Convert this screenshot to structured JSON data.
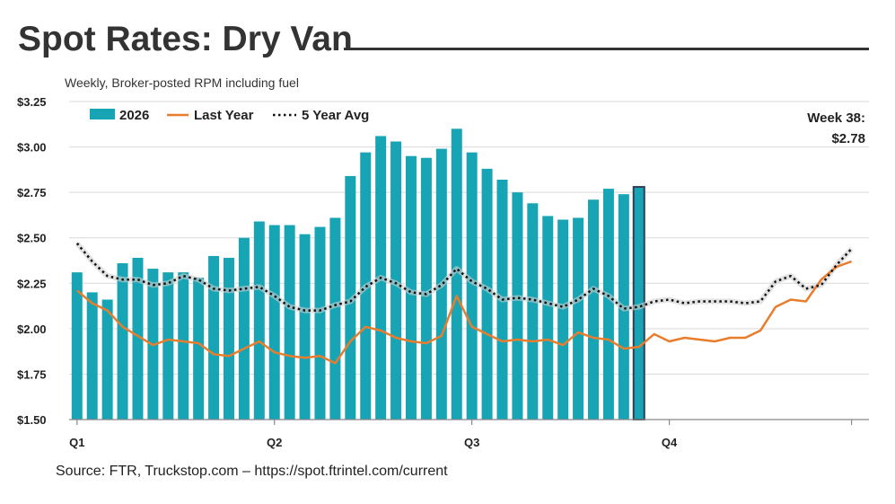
{
  "title": "Spot Rates: Dry Van",
  "source": "Source: FTR, Truckstop.com – https://spot.ftrintel.com/current",
  "chart_data": {
    "type": "bar",
    "subtitle": "Weekly, Broker-posted RPM including fuel",
    "ylim": [
      1.5,
      3.25
    ],
    "y_ticks": [
      {
        "value": 1.5,
        "label": "$1.50"
      },
      {
        "value": 1.75,
        "label": "$1.75"
      },
      {
        "value": 2.0,
        "label": "$2.00"
      },
      {
        "value": 2.25,
        "label": "$2.25"
      },
      {
        "value": 2.5,
        "label": "$2.50"
      },
      {
        "value": 2.75,
        "label": "$2.75"
      },
      {
        "value": 3.0,
        "label": "$3.00"
      },
      {
        "value": 3.25,
        "label": "$3.25"
      }
    ],
    "grid": true,
    "x_range": [
      1,
      52
    ],
    "quarters": [
      {
        "label": "Q1",
        "week": 1
      },
      {
        "label": "Q2",
        "week": 14
      },
      {
        "label": "Q3",
        "week": 27
      },
      {
        "label": "Q4",
        "week": 40
      }
    ],
    "legend_position": "top-left",
    "callout": {
      "line1": "Week 38:",
      "line2": "$2.78",
      "week": 38,
      "value": 2.78
    },
    "colors": {
      "bars": "#17A5B5",
      "last_year": "#E87D2E",
      "avg": "#111111",
      "highlight_border": "#2E3E55"
    },
    "series": [
      {
        "name": "2026",
        "kind": "bar",
        "x": [
          1,
          2,
          3,
          4,
          5,
          6,
          7,
          8,
          9,
          10,
          11,
          12,
          13,
          14,
          15,
          16,
          17,
          18,
          19,
          20,
          21,
          22,
          23,
          24,
          25,
          26,
          27,
          28,
          29,
          30,
          31,
          32,
          33,
          34,
          35,
          36,
          37,
          38
        ],
        "values": [
          2.31,
          2.2,
          2.16,
          2.36,
          2.39,
          2.33,
          2.31,
          2.31,
          2.28,
          2.4,
          2.39,
          2.5,
          2.59,
          2.57,
          2.57,
          2.52,
          2.56,
          2.61,
          2.84,
          2.97,
          3.06,
          3.03,
          2.95,
          2.94,
          2.99,
          3.1,
          2.97,
          2.88,
          2.82,
          2.75,
          2.69,
          2.62,
          2.6,
          2.61,
          2.71,
          2.77,
          2.74,
          2.78
        ]
      },
      {
        "name": "Last Year",
        "kind": "line",
        "x": [
          1,
          2,
          3,
          4,
          5,
          6,
          7,
          8,
          9,
          10,
          11,
          12,
          13,
          14,
          15,
          16,
          17,
          18,
          19,
          20,
          21,
          22,
          23,
          24,
          25,
          26,
          27,
          28,
          29,
          30,
          31,
          32,
          33,
          34,
          35,
          36,
          37,
          38,
          39,
          40,
          41,
          42,
          43,
          44,
          45,
          46,
          47,
          48,
          49,
          50,
          51,
          52
        ],
        "values": [
          2.21,
          2.14,
          2.1,
          2.01,
          1.96,
          1.91,
          1.94,
          1.93,
          1.92,
          1.86,
          1.85,
          1.89,
          1.93,
          1.87,
          1.85,
          1.84,
          1.85,
          1.81,
          1.93,
          2.01,
          1.99,
          1.95,
          1.93,
          1.92,
          1.96,
          2.18,
          2.01,
          1.97,
          1.93,
          1.94,
          1.93,
          1.94,
          1.91,
          1.98,
          1.95,
          1.94,
          1.89,
          1.9,
          1.97,
          1.93,
          1.95,
          1.94,
          1.93,
          1.95,
          1.95,
          1.99,
          2.12,
          2.16,
          2.15,
          2.27,
          2.34,
          2.37
        ]
      },
      {
        "name": "5 Year Avg",
        "kind": "line",
        "x": [
          1,
          2,
          3,
          4,
          5,
          6,
          7,
          8,
          9,
          10,
          11,
          12,
          13,
          14,
          15,
          16,
          17,
          18,
          19,
          20,
          21,
          22,
          23,
          24,
          25,
          26,
          27,
          28,
          29,
          30,
          31,
          32,
          33,
          34,
          35,
          36,
          37,
          38,
          39,
          40,
          41,
          42,
          43,
          44,
          45,
          46,
          47,
          48,
          49,
          50,
          51,
          52
        ],
        "values": [
          2.47,
          2.37,
          2.29,
          2.27,
          2.27,
          2.24,
          2.25,
          2.29,
          2.27,
          2.22,
          2.21,
          2.22,
          2.23,
          2.18,
          2.12,
          2.1,
          2.1,
          2.13,
          2.15,
          2.23,
          2.28,
          2.25,
          2.2,
          2.19,
          2.24,
          2.33,
          2.26,
          2.22,
          2.16,
          2.17,
          2.16,
          2.14,
          2.12,
          2.16,
          2.22,
          2.18,
          2.11,
          2.12,
          2.15,
          2.16,
          2.14,
          2.15,
          2.15,
          2.15,
          2.14,
          2.15,
          2.26,
          2.29,
          2.22,
          2.24,
          2.35,
          2.44
        ]
      }
    ]
  }
}
